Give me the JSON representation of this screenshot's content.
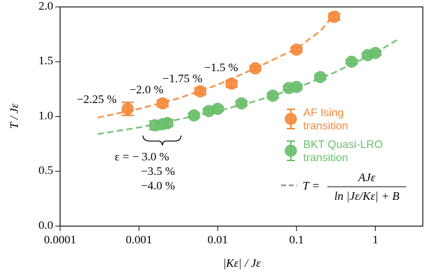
{
  "chart_data": {
    "type": "scatter",
    "x_label": "|Kε| / Jε",
    "y_label": "T / Jε",
    "log_x": true,
    "xlim": [
      0.0001,
      4
    ],
    "xticks": [
      0.0001,
      0.001,
      0.01,
      0.1,
      1
    ],
    "ylim": [
      0,
      2
    ],
    "yticks": [
      {
        "value": 0,
        "label": "0.0"
      },
      0.5,
      {
        "value": 1,
        "label": "1.0"
      },
      1.5,
      {
        "value": 2,
        "label": "2.0"
      }
    ],
    "series": [
      {
        "name": "AF Ising transition",
        "color": "#f4893b",
        "x": [
          0.00072,
          0.002,
          0.006,
          0.015,
          0.03,
          0.1,
          0.3
        ],
        "values": [
          1.07,
          1.12,
          1.23,
          1.3,
          1.44,
          1.61,
          1.91
        ],
        "errors": [
          0.06,
          0.03,
          0.03,
          0.03,
          0.02,
          0.02,
          0.03
        ]
      },
      {
        "name": "BKT Quasi-LRO transition",
        "color": "#6bbf6b",
        "x": [
          0.0016,
          0.002,
          0.0023,
          0.005,
          0.0077,
          0.01,
          0.02,
          0.05,
          0.08,
          0.1,
          0.2,
          0.5,
          0.8,
          1
        ],
        "values": [
          0.92,
          0.93,
          0.94,
          1.01,
          1.05,
          1.07,
          1.12,
          1.19,
          1.26,
          1.27,
          1.36,
          1.5,
          1.56,
          1.58
        ],
        "errors": [
          0.04,
          0.03,
          0.03,
          0.02,
          0.02,
          0.02,
          0.02,
          0.02,
          0.02,
          0.02,
          0.02,
          0.02,
          0.02,
          0.02
        ]
      }
    ],
    "fits": [
      {
        "color": "#f4893b",
        "x": [
          0.0003,
          0.001,
          0.003,
          0.01,
          0.03,
          0.1,
          0.2,
          0.35
        ],
        "values": [
          0.99,
          1.07,
          1.16,
          1.29,
          1.44,
          1.62,
          1.78,
          1.98
        ]
      },
      {
        "color": "#6bbf6b",
        "x": [
          0.0003,
          0.001,
          0.003,
          0.01,
          0.03,
          0.1,
          0.3,
          1,
          2
        ],
        "values": [
          0.84,
          0.9,
          0.97,
          1.05,
          1.14,
          1.26,
          1.4,
          1.58,
          1.71
        ]
      }
    ],
    "fit_label": {
      "lhs": "T =",
      "numerator": "AJε",
      "denominator": "ln |Jε/Kε| + B"
    },
    "annotations": [
      "−2.25 %",
      "−2.0 %",
      "−1.75 %",
      "−1.5 %",
      "ε = − 3.0 %",
      "−3.5 %",
      "−4.0 %"
    ]
  }
}
